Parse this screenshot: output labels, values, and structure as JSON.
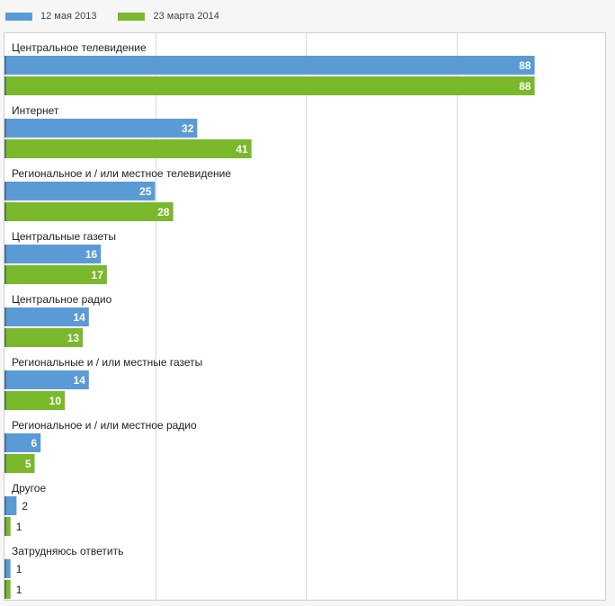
{
  "chart_data": {
    "type": "bar",
    "orientation": "horizontal",
    "categories": [
      "Центральное телевидение",
      "Интернет",
      "Региональное и / или местное телевидение",
      "Центральные газеты",
      "Центральное радио",
      "Региональные и / или местные газеты",
      "Региональное и / или местное радио",
      "Другое",
      "Затрудняюсь ответить"
    ],
    "series": [
      {
        "name": "12 мая 2013",
        "color": "#5b9bd5",
        "values": [
          88,
          32,
          25,
          16,
          14,
          14,
          6,
          2,
          1
        ]
      },
      {
        "name": "23 марта 2014",
        "color": "#7ab82c",
        "values": [
          88,
          41,
          28,
          17,
          13,
          10,
          5,
          1,
          1
        ]
      }
    ],
    "xlim": [
      0,
      100
    ],
    "grid": true,
    "legend": "top-left"
  }
}
